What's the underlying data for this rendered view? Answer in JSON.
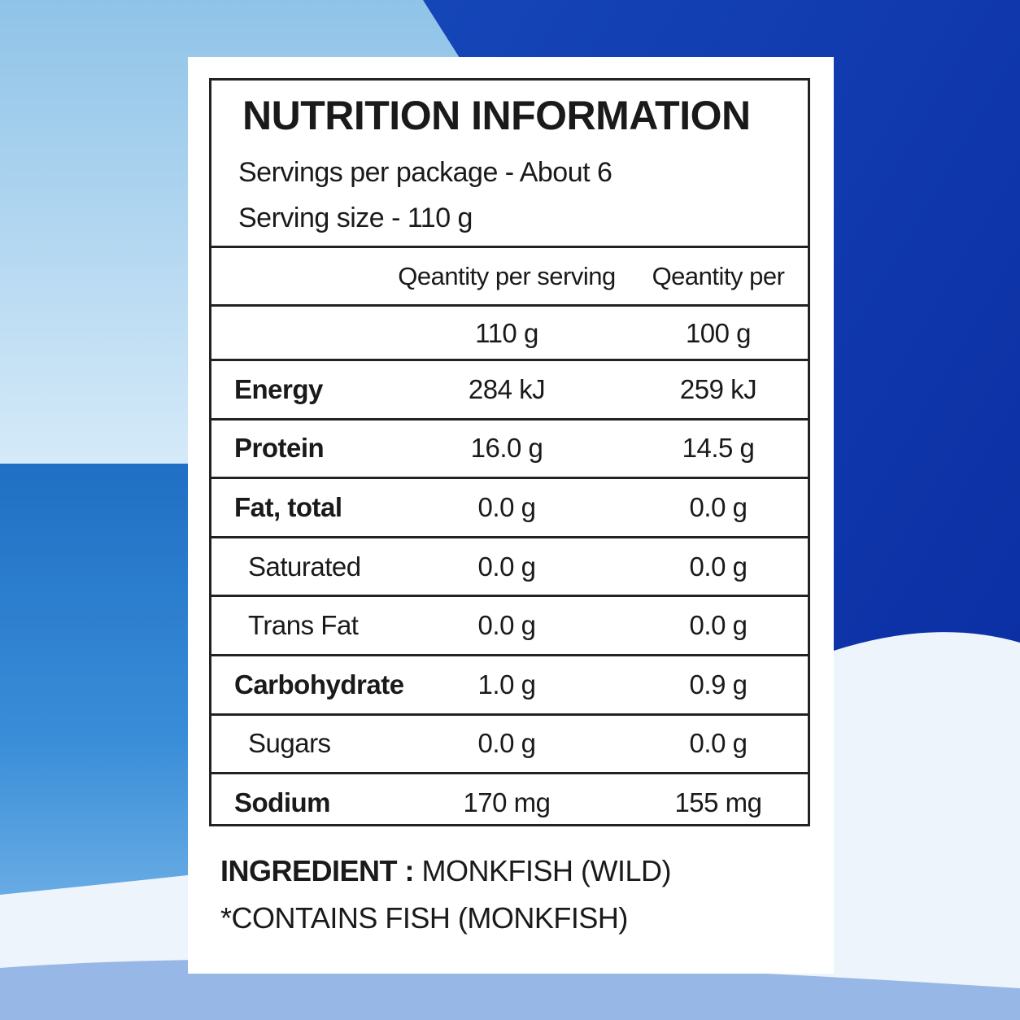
{
  "header": {
    "title": "NUTRITION INFORMATION",
    "servings": "Servings per package - About 6",
    "serving_size": "Serving size - 110 g"
  },
  "table": {
    "columns": [
      "Qeantity per serving",
      "Qeantity per"
    ],
    "units": [
      "110 g",
      "100 g"
    ],
    "rows": [
      [
        "Energy",
        "284 kJ",
        "259 kJ"
      ],
      [
        "Protein",
        "16.0 g",
        "14.5 g"
      ],
      [
        "Fat, total",
        "0.0 g",
        "0.0 g"
      ],
      [
        "Saturated",
        "0.0 g",
        "0.0 g"
      ],
      [
        "Trans Fat",
        "0.0 g",
        "0.0 g"
      ],
      [
        "Carbohydrate",
        "1.0 g",
        "0.9 g"
      ],
      [
        "Sugars",
        "0.0 g",
        "0.0 g"
      ],
      [
        "Sodium",
        "170 mg",
        "155 mg"
      ]
    ]
  },
  "footer": {
    "ingredient_label": "INGREDIENT :",
    "ingredient": "MONKFISH (WILD)",
    "allergen": "*CONTAINS FISH (MONKFISH)"
  }
}
